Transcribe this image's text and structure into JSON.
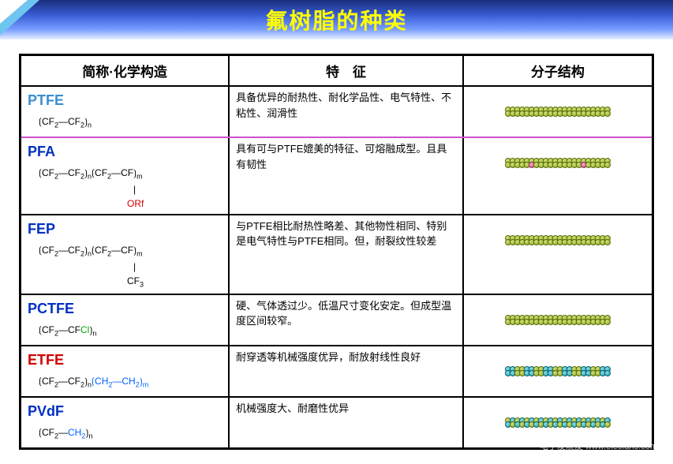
{
  "title": "氟树脂的种类",
  "headers": {
    "c1": "简称·化学构造",
    "c2": "特　征",
    "c3": "分子结构"
  },
  "rows": [
    {
      "abbr": "PTFE",
      "abbr_color": "#3a8fcf",
      "formula_html": "⟮CF<sub>2</sub>—CF<sub>2</sub>⟯<sub>n</sub>",
      "feature": "具备优异的耐热性、耐化学品性、电气特性、不粘性、润滑性",
      "mol_colors": [
        "olive"
      ],
      "double_row": true,
      "sep": "magenta"
    },
    {
      "abbr": "PFA",
      "abbr_color": "#0030c0",
      "formula_html": "⟮CF<sub>2</sub>—CF<sub>2</sub>⟯<sub>n</sub>⟮CF<sub>2</sub>—CF⟯<sub>m</sub><br><span style='display:inline-block;margin-left:120px;'>|</span><br><span style='display:inline-block;margin-left:112px;color:#d00000;'>ORf</span>",
      "feature": "具有可与PTFE媲美的特征、可熔融成型。且具有韧性",
      "mol_colors": [
        "olive",
        "pink"
      ],
      "double_row": true
    },
    {
      "abbr": "FEP",
      "abbr_color": "#0030c0",
      "formula_html": "⟮CF<sub>2</sub>—CF<sub>2</sub>⟯<sub>n</sub>⟮CF<sub>2</sub>—CF⟯<sub>m</sub><br><span style='display:inline-block;margin-left:120px;'>|</span><br><span style='display:inline-block;margin-left:112px;'>CF<sub>3</sub></span>",
      "feature": "与PTFE相比耐热性略差、其他物性相同、特别是电气特性与PTFE相同。但，耐裂纹性较差",
      "mol_colors": [
        "olive"
      ],
      "double_row": true
    },
    {
      "abbr": "PCTFE",
      "abbr_color": "#0030c0",
      "formula_html": "⟮CF<sub>2</sub>—CF<span class='green'>Cl</span>⟯<sub>n</sub>",
      "feature": "硬、气体透过少。低温尺寸变化安定。但成型温度区间较窄。",
      "mol_colors": [
        "olive"
      ],
      "double_row": true
    },
    {
      "abbr": "ETFE",
      "abbr_color": "#d00000",
      "formula_html": "⟮CF<sub>2</sub>—CF<sub>2</sub>⟯<sub>n</sub><span class='blue'>⟮CH<sub>2</sub>—CH<sub>2</sub>⟯<sub>m</sub></span>",
      "feature": "耐穿透等机械强度优异，耐放射线性良好",
      "mol_colors": [
        "teal",
        "olive_alt"
      ],
      "double_row": true
    },
    {
      "abbr": "PVdF",
      "abbr_color": "#0030c0",
      "formula_html": "⟮CF<sub>2</sub>—<span class='blue'>CH<sub>2</sub></span>⟯<sub>n</sub>",
      "feature": "机械强度大、耐磨性优异",
      "mol_colors": [
        "teal_olive"
      ],
      "double_row": false
    }
  ],
  "watermark": "电子发烧友 www.elecfans.com"
}
